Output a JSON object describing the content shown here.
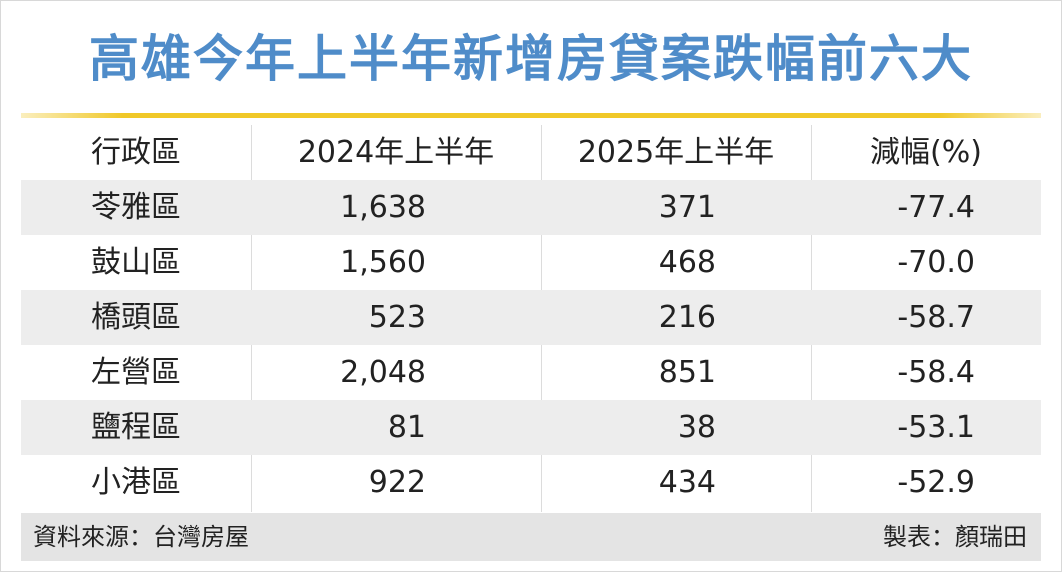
{
  "title": "高雄今年上半年新增房貸案跌幅前六大",
  "table": {
    "columns": [
      "行政區",
      "2024年上半年",
      "2025年上半年",
      "減幅(%)"
    ],
    "rows": [
      [
        "苓雅區",
        "1,638",
        "371",
        "-77.4"
      ],
      [
        "鼓山區",
        "1,560",
        "468",
        "-70.0"
      ],
      [
        "橋頭區",
        "523",
        "216",
        "-58.7"
      ],
      [
        "左營區",
        "2,048",
        "851",
        "-58.4"
      ],
      [
        "鹽程區",
        "81",
        "38",
        "-53.1"
      ],
      [
        "小港區",
        "922",
        "434",
        "-52.9"
      ]
    ]
  },
  "footer": {
    "source": "資料來源：台灣房屋",
    "author": "製表：顏瑞田"
  }
}
